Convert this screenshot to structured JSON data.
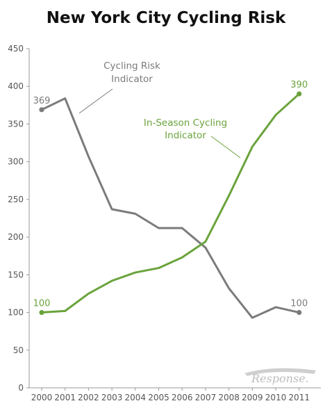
{
  "chart_data": {
    "type": "line",
    "title": "New York City Cycling Risk",
    "x": [
      "2000",
      "2001",
      "2002",
      "2003",
      "2004",
      "2005",
      "2006",
      "2007",
      "2008",
      "2009",
      "2010",
      "2011"
    ],
    "ylim": [
      0,
      450
    ],
    "yticks": [
      0,
      50,
      100,
      150,
      200,
      250,
      300,
      350,
      400,
      450
    ],
    "grid": false,
    "series": [
      {
        "name": "Cycling Risk Indicator",
        "label_lines": [
          "Cycling Risk",
          "Indicator"
        ],
        "color": "#7b7b7b",
        "values": [
          369,
          384,
          307,
          237,
          231,
          212,
          212,
          186,
          132,
          93,
          107,
          100
        ],
        "start_label": "369",
        "end_label": "100"
      },
      {
        "name": "In-Season Cycling Indicator",
        "label_lines": [
          "In-Season Cycling",
          "Indicator"
        ],
        "color": "#6aa33b",
        "values": [
          100,
          102,
          125,
          142,
          153,
          159,
          173,
          194,
          255,
          320,
          362,
          390
        ],
        "start_label": "100",
        "end_label": "390"
      }
    ]
  },
  "watermark": "Response."
}
